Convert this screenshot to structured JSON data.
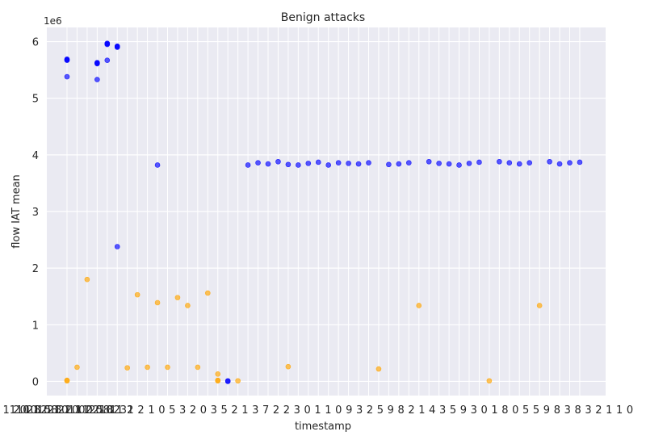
{
  "chart_data": {
    "type": "scatter",
    "title": "Benign attacks",
    "xlabel": "timestamp",
    "ylabel": "flow IAT mean",
    "y_offset_label": "1e6",
    "ylim": [
      -250000,
      6250000
    ],
    "yticks": [
      0,
      1000000,
      2000000,
      3000000,
      4000000,
      5000000,
      6000000
    ],
    "ytick_labels": [
      "0",
      "1",
      "2",
      "3",
      "4",
      "5",
      "6"
    ],
    "x_category_count": 52,
    "grid": true,
    "colors": {
      "blue": "#0000ff",
      "orange": "#ffa500",
      "background": "#eaeaf2",
      "grid": "#ffffff"
    },
    "x_tick_labels_visible": [
      "1110",
      "2021",
      "1010",
      "8221",
      "5821",
      "8011",
      "2002",
      "1120",
      "0210",
      "5811",
      "8232",
      "1",
      "2",
      "1",
      "0",
      "5",
      "3",
      "2",
      "0",
      "3",
      "5",
      "2",
      "1",
      "3",
      "7",
      "2",
      "2",
      "3",
      "0",
      "1",
      "1",
      "0",
      "9",
      "3",
      "2",
      "5",
      "9",
      "8",
      "2",
      "1",
      "4",
      "3",
      "5",
      "9",
      "3",
      "0",
      "1",
      "8",
      "0",
      "5",
      "5",
      "9",
      "8",
      "3",
      "8",
      "3",
      "2",
      "1",
      "1",
      "0"
    ],
    "series": [
      {
        "color": "blue",
        "points": [
          [
            0,
            5680000
          ],
          [
            0,
            5670000
          ],
          [
            0,
            5690000
          ],
          [
            0,
            5380000
          ],
          [
            3,
            5620000
          ],
          [
            3,
            5610000
          ],
          [
            3,
            5630000
          ],
          [
            3,
            5330000
          ],
          [
            4,
            5960000
          ],
          [
            4,
            5950000
          ],
          [
            4,
            5970000
          ],
          [
            4,
            5670000
          ],
          [
            5,
            5910000
          ],
          [
            5,
            5900000
          ],
          [
            5,
            5920000
          ],
          [
            5,
            2380000
          ],
          [
            9,
            3820000
          ],
          [
            16,
            0
          ],
          [
            16,
            10000
          ],
          [
            18,
            3820000
          ],
          [
            19,
            3860000
          ],
          [
            20,
            3840000
          ],
          [
            21,
            3880000
          ],
          [
            22,
            3830000
          ],
          [
            23,
            3820000
          ],
          [
            24,
            3850000
          ],
          [
            25,
            3870000
          ],
          [
            26,
            3820000
          ],
          [
            27,
            3860000
          ],
          [
            28,
            3850000
          ],
          [
            29,
            3840000
          ],
          [
            30,
            3860000
          ],
          [
            32,
            3830000
          ],
          [
            33,
            3840000
          ],
          [
            34,
            3860000
          ],
          [
            36,
            3880000
          ],
          [
            37,
            3850000
          ],
          [
            38,
            3840000
          ],
          [
            39,
            3820000
          ],
          [
            40,
            3850000
          ],
          [
            41,
            3870000
          ],
          [
            43,
            3880000
          ],
          [
            44,
            3860000
          ],
          [
            45,
            3840000
          ],
          [
            46,
            3860000
          ],
          [
            48,
            3880000
          ],
          [
            49,
            3840000
          ],
          [
            50,
            3860000
          ],
          [
            51,
            3870000
          ]
        ]
      },
      {
        "color": "orange",
        "points": [
          [
            0,
            10000
          ],
          [
            0,
            20000
          ],
          [
            1,
            250000
          ],
          [
            2,
            1800000
          ],
          [
            6,
            240000
          ],
          [
            7,
            1530000
          ],
          [
            8,
            250000
          ],
          [
            9,
            1390000
          ],
          [
            10,
            250000
          ],
          [
            11,
            1480000
          ],
          [
            12,
            1340000
          ],
          [
            13,
            250000
          ],
          [
            14,
            1560000
          ],
          [
            15,
            130000
          ],
          [
            15,
            20000
          ],
          [
            15,
            10000
          ],
          [
            17,
            10000
          ],
          [
            22,
            260000
          ],
          [
            31,
            220000
          ],
          [
            35,
            1340000
          ],
          [
            42,
            10000
          ],
          [
            47,
            1340000
          ]
        ]
      }
    ]
  }
}
